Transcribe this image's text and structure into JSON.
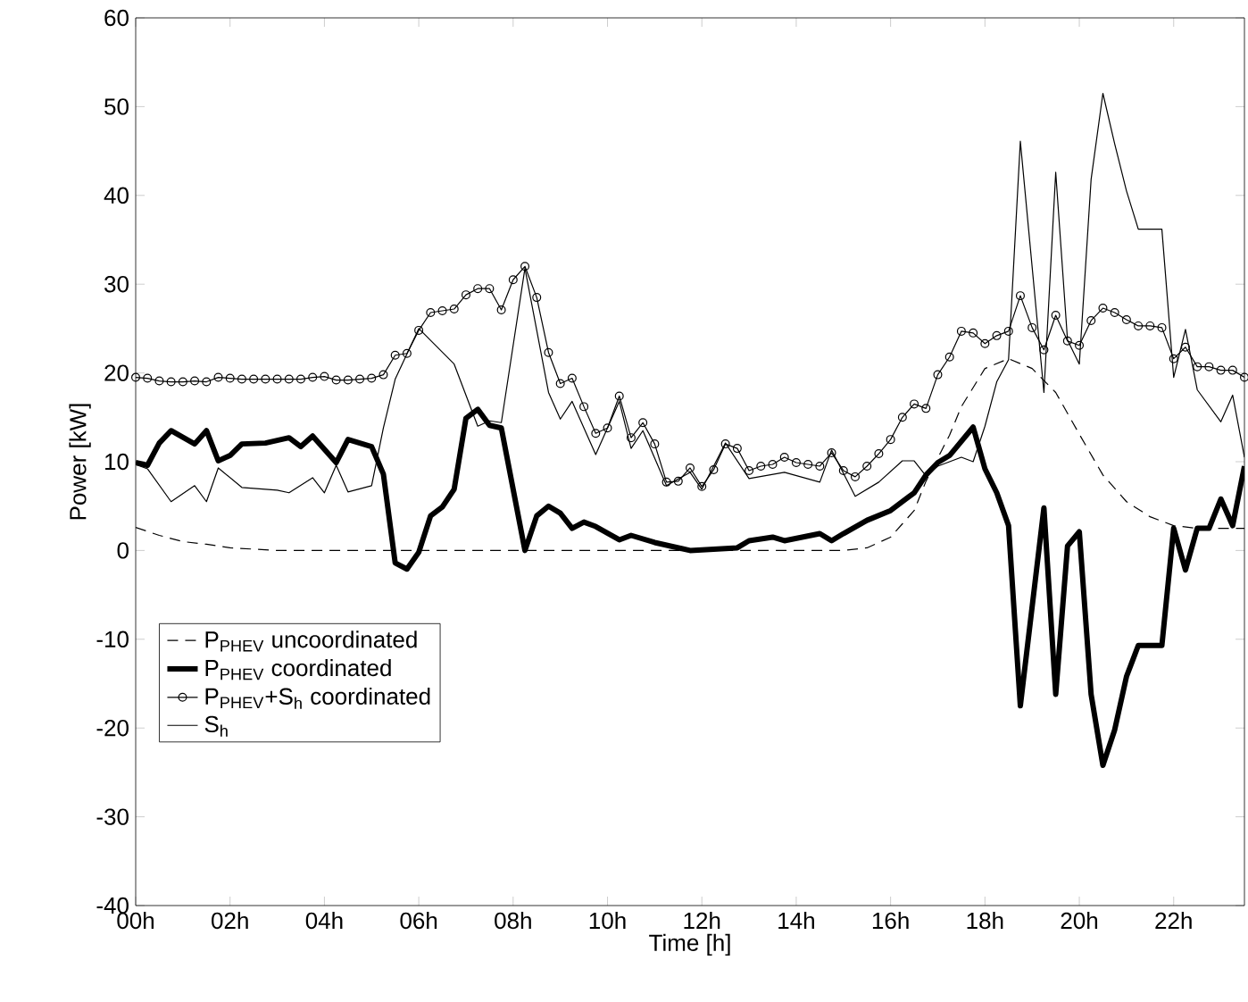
{
  "chart_data": {
    "type": "line",
    "xlabel": "Time [h]",
    "ylabel": "Power [kW]",
    "legend": "bottom left",
    "xlim": [
      0,
      23.5
    ],
    "ylim": [
      -40,
      60
    ],
    "xticks": [
      {
        "value": 0,
        "label": "00h"
      },
      {
        "value": 2,
        "label": "02h"
      },
      {
        "value": 4,
        "label": "04h"
      },
      {
        "value": 6,
        "label": "06h"
      },
      {
        "value": 8,
        "label": "08h"
      },
      {
        "value": 10,
        "label": "10h"
      },
      {
        "value": 12,
        "label": "12h"
      },
      {
        "value": 14,
        "label": "14h"
      },
      {
        "value": 16,
        "label": "16h"
      },
      {
        "value": 18,
        "label": "18h"
      },
      {
        "value": 20,
        "label": "20h"
      },
      {
        "value": 22,
        "label": "22h"
      }
    ],
    "yticks": [
      -40,
      -30,
      -20,
      -10,
      0,
      10,
      20,
      30,
      40,
      50,
      60
    ],
    "series": [
      {
        "name": "P$_{PHEV}$ uncoordinated",
        "color": "#000000",
        "line_style": "dashed",
        "x": [
          0,
          0.5,
          1,
          1.5,
          2,
          3,
          15,
          15.5,
          16,
          16.5,
          16.75,
          17.25,
          17.5,
          18,
          18.5,
          19,
          19.5,
          20,
          20.5,
          21,
          21.5,
          22,
          22.5,
          23,
          23.5
        ],
        "values": [
          2.6,
          1.7,
          1.0,
          0.7,
          0.3,
          0,
          0,
          0.3,
          1.5,
          4.5,
          7.8,
          13,
          16.2,
          20.5,
          21.6,
          20.5,
          17.8,
          13.1,
          8.5,
          5.5,
          3.8,
          2.8,
          2.5,
          2.5,
          2.5
        ]
      },
      {
        "name": "P$_{PHEV}$ coordinated",
        "color": "#000000",
        "x": [
          0,
          0.25,
          0.5,
          0.75,
          1.25,
          1.5,
          1.75,
          2,
          2.25,
          2.75,
          3.25,
          3.5,
          3.75,
          4.25,
          4.5,
          5,
          5.25,
          5.5,
          5.75,
          6,
          6.25,
          6.5,
          6.75,
          7,
          7.25,
          7.5,
          7.75,
          8.25,
          8.5,
          8.75,
          9,
          9.25,
          9.5,
          9.75,
          10.25,
          10.5,
          11,
          11.75,
          12.75,
          13,
          13.5,
          13.75,
          14.5,
          14.75,
          15,
          15.5,
          16,
          16.5,
          16.75,
          17,
          17.25,
          17.75,
          18,
          18.25,
          18.5,
          18.75,
          19.25,
          19.5,
          19.75,
          20,
          20.25,
          20.5,
          20.75,
          21,
          21.25,
          21.75,
          22,
          22.25,
          22.5,
          22.75,
          23,
          23.25,
          23.5
        ],
        "values": [
          9.9,
          9.6,
          12.1,
          13.5,
          12.0,
          13.5,
          10.1,
          10.7,
          12.0,
          12.1,
          12.7,
          11.7,
          12.9,
          9.9,
          12.5,
          11.7,
          8.6,
          -1.4,
          -2.1,
          -0.2,
          3.9,
          4.9,
          6.9,
          14.9,
          15.9,
          14.1,
          13.8,
          0,
          3.9,
          5.0,
          4.2,
          2.5,
          3.2,
          2.7,
          1.2,
          1.7,
          0.9,
          0,
          0.3,
          1.1,
          1.5,
          1.1,
          1.9,
          1.1,
          1.9,
          3.4,
          4.5,
          6.5,
          8.5,
          9.9,
          10.7,
          13.9,
          9.2,
          6.5,
          2.8,
          -17.5,
          4.8,
          -16.2,
          0.5,
          2.1,
          -16.2,
          -24.2,
          -20.2,
          -14.2,
          -10.7,
          -10.7,
          2.5,
          -2.2,
          2.5,
          2.5,
          5.8,
          2.8,
          9.5
        ]
      },
      {
        "name": "P$_{PHEV}$+S$_{h}$ coordinated",
        "color": "#000000",
        "marker": "circle",
        "x": [
          0,
          0.25,
          0.5,
          0.75,
          1,
          1.25,
          1.5,
          1.75,
          2,
          2.25,
          2.5,
          2.75,
          3,
          3.25,
          3.5,
          3.75,
          4,
          4.25,
          4.5,
          4.75,
          5,
          5.25,
          5.5,
          5.75,
          6,
          6.25,
          6.5,
          6.75,
          7,
          7.25,
          7.5,
          7.75,
          8,
          8.25,
          8.5,
          8.75,
          9,
          9.25,
          9.5,
          9.75,
          10,
          10.25,
          10.5,
          10.75,
          11,
          11.25,
          11.5,
          11.75,
          12,
          12.25,
          12.5,
          12.75,
          13,
          13.25,
          13.5,
          13.75,
          14,
          14.25,
          14.5,
          14.75,
          15,
          15.25,
          15.5,
          15.75,
          16,
          16.25,
          16.5,
          16.75,
          17,
          17.25,
          17.5,
          17.75,
          18,
          18.25,
          18.5,
          18.75,
          19,
          19.25,
          19.5,
          19.75,
          20,
          20.25,
          20.5,
          20.75,
          21,
          21.25,
          21.5,
          21.75,
          22,
          22.25,
          22.5,
          22.75,
          23,
          23.25,
          23.5
        ],
        "values": [
          19.5,
          19.4,
          19.1,
          19.0,
          19.0,
          19.1,
          19.0,
          19.5,
          19.4,
          19.3,
          19.3,
          19.3,
          19.3,
          19.3,
          19.3,
          19.5,
          19.6,
          19.2,
          19.2,
          19.3,
          19.4,
          19.8,
          22.0,
          22.2,
          24.8,
          26.8,
          27.0,
          27.2,
          28.8,
          29.5,
          29.5,
          27.1,
          30.5,
          32.0,
          28.5,
          22.3,
          18.8,
          19.4,
          16.2,
          13.2,
          13.8,
          17.4,
          12.7,
          14.4,
          12.0,
          7.7,
          7.8,
          9.3,
          7.2,
          9.1,
          12.0,
          11.5,
          9.0,
          9.5,
          9.7,
          10.5,
          9.9,
          9.7,
          9.5,
          11.0,
          9.0,
          8.3,
          9.5,
          10.9,
          12.5,
          15.0,
          16.5,
          16.0,
          19.8,
          21.8,
          24.7,
          24.5,
          23.3,
          24.2,
          24.7,
          28.7,
          25.1,
          22.6,
          26.5,
          23.6,
          23.1,
          25.9,
          27.3,
          26.8,
          26.0,
          25.3,
          25.3,
          25.1,
          21.6,
          22.9,
          20.7,
          20.7,
          20.3,
          20.3,
          19.5
        ]
      },
      {
        "name": "S$_{h}$",
        "color": "#000000",
        "x": [
          0,
          0.25,
          0.75,
          1.25,
          1.5,
          1.75,
          2.25,
          3,
          3.25,
          3.75,
          4,
          4.25,
          4.5,
          5,
          5.25,
          5.5,
          6,
          6.75,
          7.25,
          7.5,
          7.75,
          8.25,
          8.75,
          9,
          9.25,
          9.75,
          10.25,
          10.5,
          10.75,
          11.25,
          11.75,
          12,
          12.5,
          13,
          13.75,
          14.5,
          14.75,
          15.25,
          15.75,
          16.25,
          16.5,
          16.75,
          17,
          17.5,
          17.75,
          18,
          18.25,
          18.5,
          18.75,
          19.25,
          19.5,
          19.75,
          20,
          20.25,
          20.5,
          20.75,
          21,
          21.25,
          21.75,
          22,
          22.25,
          22.5,
          23,
          23.25,
          23.5
        ],
        "values": [
          9.7,
          9.2,
          5.5,
          7.3,
          5.5,
          9.3,
          7.1,
          6.8,
          6.5,
          8.2,
          6.5,
          9.6,
          6.6,
          7.3,
          13.8,
          19.3,
          25.0,
          21.0,
          14.0,
          14.6,
          14.4,
          31.8,
          17.8,
          14.8,
          16.8,
          10.8,
          16.8,
          11.5,
          13.5,
          7.3,
          8.8,
          6.9,
          12.1,
          8.1,
          8.8,
          7.7,
          11.3,
          6.1,
          7.7,
          10.1,
          10.1,
          8.4,
          9.5,
          10.5,
          10.0,
          14.0,
          19.0,
          21.5,
          46.1,
          17.8,
          42.6,
          23.7,
          21.0,
          41.8,
          51.5,
          45.8,
          40.5,
          36.2,
          36.2,
          19.5,
          24.9,
          18.1,
          14.5,
          17.5,
          10.5
        ]
      }
    ]
  }
}
